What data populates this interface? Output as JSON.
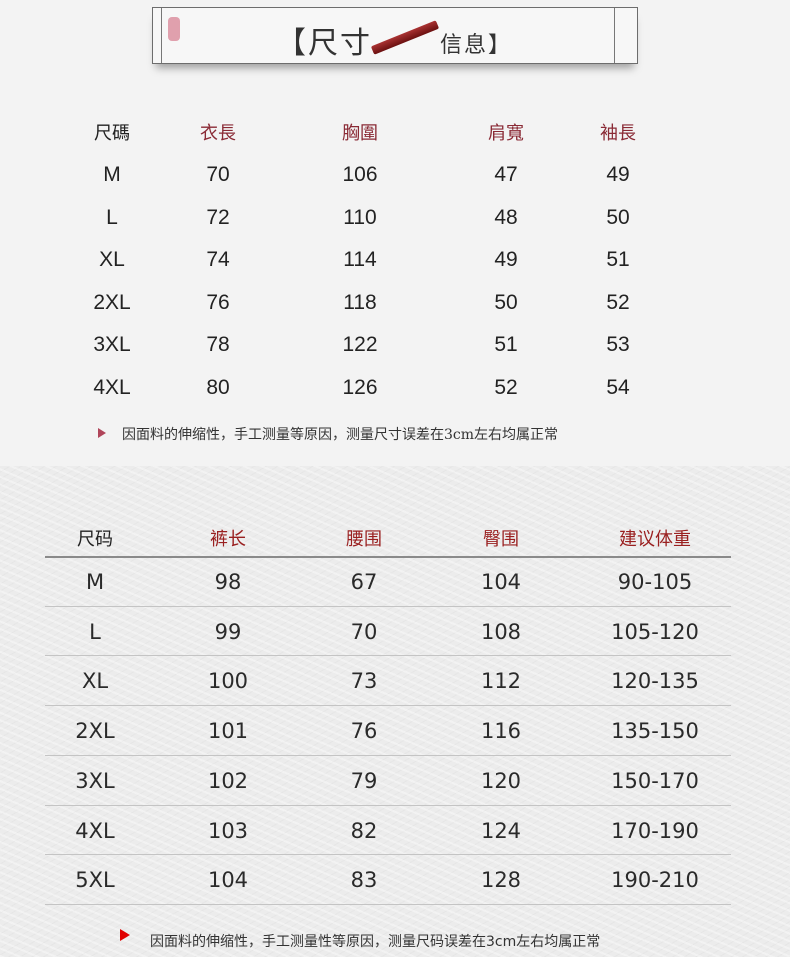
{
  "banner": {
    "title": "【尺寸",
    "subtitle": "信息】"
  },
  "table1": {
    "headers": [
      "尺碼",
      "衣長",
      "胸圍",
      "肩寬",
      "袖長"
    ],
    "rows": [
      [
        "M",
        "70",
        "106",
        "47",
        "49"
      ],
      [
        "L",
        "72",
        "110",
        "48",
        "50"
      ],
      [
        "XL",
        "74",
        "114",
        "49",
        "51"
      ],
      [
        "2XL",
        "76",
        "118",
        "50",
        "52"
      ],
      [
        "3XL",
        "78",
        "122",
        "51",
        "53"
      ],
      [
        "4XL",
        "80",
        "126",
        "52",
        "54"
      ]
    ],
    "note": "因面料的伸缩性，手工测量等原因，测量尺寸误差在3cm左右均属正常"
  },
  "table2": {
    "headers": [
      "尺码",
      "裤长",
      "腰围",
      "臀围",
      "建议体重"
    ],
    "rows": [
      [
        "M",
        "98",
        "67",
        "104",
        "90-105"
      ],
      [
        "L",
        "99",
        "70",
        "108",
        "105-120"
      ],
      [
        "XL",
        "100",
        "73",
        "112",
        "120-135"
      ],
      [
        "2XL",
        "101",
        "76",
        "116",
        "135-150"
      ],
      [
        "3XL",
        "102",
        "79",
        "120",
        "150-170"
      ],
      [
        "4XL",
        "103",
        "82",
        "124",
        "170-190"
      ],
      [
        "5XL",
        "104",
        "83",
        "128",
        "190-210"
      ]
    ],
    "note": "因面料的伸缩性，手工测量性等原因，测量尺码误差在3cm左右均属正常"
  },
  "colors": {
    "header_red": "#9a2020",
    "arrow_top": "#b0455a",
    "arrow_bottom": "#e00000"
  }
}
